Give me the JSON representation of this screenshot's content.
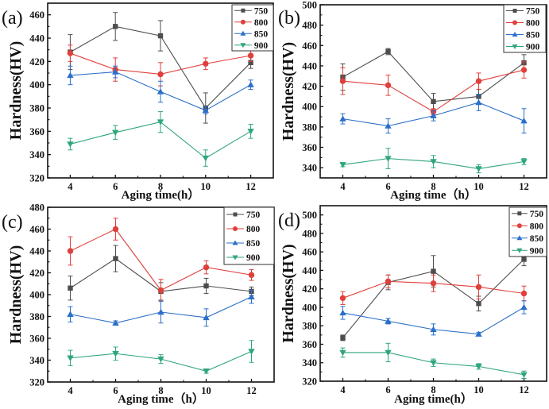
{
  "figure": {
    "series_colors": {
      "750": "#4d4d4d",
      "800": "#e0403c",
      "850": "#2a6fc9",
      "900": "#2fa67a"
    },
    "series_markers": {
      "750": "square",
      "800": "circle",
      "850": "triangle-up",
      "900": "triangle-down"
    }
  },
  "chart_data": [
    {
      "type": "line",
      "panel_label": "(a)",
      "title": "",
      "xlabel": "Aging time(h）",
      "ylabel": "Hardness(HV)",
      "x": [
        4,
        6,
        8,
        10,
        12
      ],
      "xticks": [
        "4",
        "6",
        "8",
        "10",
        "12"
      ],
      "xlim": [
        3,
        13
      ],
      "ylim": [
        320,
        470
      ],
      "yticks": [
        "320",
        "340",
        "360",
        "380",
        "400",
        "420",
        "440",
        "460"
      ],
      "legend": {
        "placement": "top-right",
        "entries": [
          "750",
          "800",
          "850",
          "900"
        ]
      },
      "series": [
        {
          "name": "750",
          "values": [
            428,
            450,
            442,
            380,
            419
          ],
          "errors": [
            15,
            12,
            13,
            13,
            5
          ]
        },
        {
          "name": "800",
          "values": [
            427,
            413,
            409,
            418,
            425
          ],
          "errors": [
            7,
            10,
            10,
            5,
            5
          ]
        },
        {
          "name": "850",
          "values": [
            408,
            411,
            394,
            378,
            400
          ],
          "errors": [
            8,
            5,
            9,
            3,
            4
          ]
        },
        {
          "name": "900",
          "values": [
            349,
            359,
            368,
            337,
            360
          ],
          "errors": [
            5,
            6,
            9,
            7,
            6
          ]
        }
      ]
    },
    {
      "type": "line",
      "panel_label": "(b)",
      "title": "",
      "xlabel": "Aging time（h）",
      "ylabel": "Hardness(HV)",
      "x": [
        4,
        6,
        8,
        10,
        12
      ],
      "xticks": [
        "4",
        "6",
        "8",
        "10",
        "12"
      ],
      "xlim": [
        3,
        13
      ],
      "ylim": [
        330,
        500
      ],
      "yticks": [
        "340",
        "360",
        "380",
        "400",
        "420",
        "440",
        "460",
        "480",
        "500"
      ],
      "legend": {
        "placement": "top-right",
        "entries": [
          "750",
          "800",
          "850",
          "900"
        ]
      },
      "series": [
        {
          "name": "750",
          "values": [
            429,
            454,
            405,
            410,
            443
          ],
          "errors": [
            13,
            3,
            8,
            7,
            8
          ]
        },
        {
          "name": "800",
          "values": [
            425,
            421,
            395,
            425,
            436
          ],
          "errors": [
            13,
            10,
            3,
            8,
            8
          ]
        },
        {
          "name": "850",
          "values": [
            388,
            381,
            391,
            404,
            386
          ],
          "errors": [
            5,
            7,
            5,
            8,
            12
          ]
        },
        {
          "name": "900",
          "values": [
            343,
            349,
            346,
            339,
            346
          ],
          "errors": [
            2,
            10,
            6,
            4,
            3
          ]
        }
      ]
    },
    {
      "type": "line",
      "panel_label": "(c)",
      "title": "",
      "xlabel": "Aging time（h）",
      "ylabel": "Hardness(HV)",
      "x": [
        4,
        6,
        8,
        10,
        12
      ],
      "xticks": [
        "4",
        "6",
        "8",
        "10",
        "12"
      ],
      "xlim": [
        3,
        13
      ],
      "ylim": [
        320,
        480
      ],
      "yticks": [
        "320",
        "340",
        "360",
        "380",
        "400",
        "420",
        "440",
        "460",
        "480"
      ],
      "legend": {
        "placement": "top-right",
        "entries": [
          "750",
          "800",
          "850",
          "900"
        ]
      },
      "series": [
        {
          "name": "750",
          "values": [
            406,
            433,
            403,
            408,
            403
          ],
          "errors": [
            11,
            12,
            8,
            7,
            4
          ]
        },
        {
          "name": "800",
          "values": [
            440,
            460,
            404,
            425,
            418
          ],
          "errors": [
            13,
            10,
            10,
            6,
            5
          ]
        },
        {
          "name": "850",
          "values": [
            382,
            374,
            384,
            379,
            398
          ],
          "errors": [
            7,
            2,
            10,
            8,
            6
          ]
        },
        {
          "name": "900",
          "values": [
            342,
            346,
            341,
            330,
            348
          ],
          "errors": [
            7,
            6,
            4,
            2,
            10
          ]
        }
      ]
    },
    {
      "type": "line",
      "panel_label": "(d)",
      "title": "",
      "xlabel": "Aging time(h）",
      "ylabel": "Hardness(HV)",
      "x": [
        4,
        6,
        8,
        10,
        12
      ],
      "xticks": [
        "4",
        "6",
        "8",
        "10",
        "12"
      ],
      "xlim": [
        3,
        13
      ],
      "ylim": [
        320,
        510
      ],
      "yticks": [
        "320",
        "340",
        "360",
        "380",
        "400",
        "420",
        "440",
        "460",
        "480",
        "500"
      ],
      "legend": {
        "placement": "top-right",
        "entries": [
          "750",
          "800",
          "850",
          "900"
        ]
      },
      "series": [
        {
          "name": "750",
          "values": [
            367,
            427,
            439,
            404,
            452
          ],
          "errors": [
            3,
            8,
            17,
            8,
            7
          ]
        },
        {
          "name": "800",
          "values": [
            410,
            428,
            426,
            422,
            415
          ],
          "errors": [
            7,
            7,
            9,
            13,
            8
          ]
        },
        {
          "name": "850",
          "values": [
            394,
            385,
            376,
            371,
            400
          ],
          "errors": [
            7,
            3,
            6,
            2,
            7
          ]
        },
        {
          "name": "900",
          "values": [
            351,
            351,
            340,
            336,
            327
          ],
          "errors": [
            5,
            10,
            4,
            3,
            4
          ]
        }
      ]
    }
  ]
}
